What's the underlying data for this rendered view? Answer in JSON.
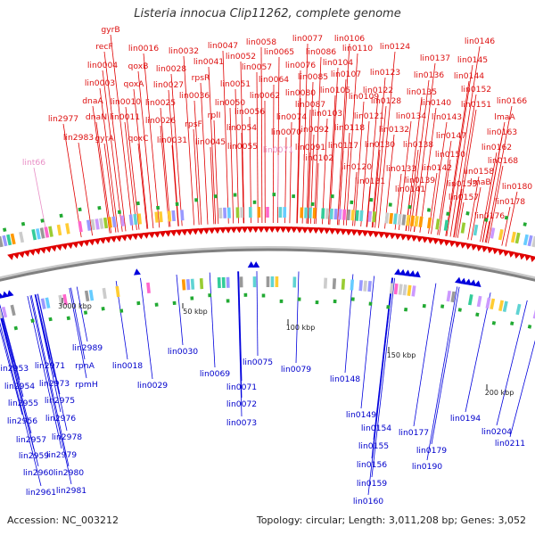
{
  "title": "Listeria innocua Clip11262, complete genome",
  "footer": {
    "accession": "Accession: NC_003212",
    "summary": "Topology: circular; Length: 3,011,208 bp; Genes: 3,052"
  },
  "scale_labels": [
    "3000 kbp",
    "50 kbp",
    "100 kbp",
    "150 kbp",
    "200 kbp"
  ],
  "colors": {
    "forward": "#e00000",
    "reverse": "#0000dd",
    "backbone": "#808080",
    "pseudo": "#e98fc6"
  },
  "labels_forward": [
    "gyrB",
    "recF",
    "lin0016",
    "lin0004",
    "qoxB",
    "lin0003",
    "qoxA",
    "dnaA",
    "lin0010",
    "dnaN",
    "lin0011",
    "lin2977",
    "lin2983",
    "gyrA",
    "qoxC",
    "lin0032",
    "lin0047",
    "lin0028",
    "lin0041",
    "rpsR",
    "lin0027",
    "lin0025",
    "lin0036",
    "rpsF",
    "lin0026",
    "rplI",
    "lin0031",
    "lin0045",
    "lin0050",
    "lin0051",
    "lin0052",
    "lin0058",
    "lin0057",
    "lin0065",
    "lin0062",
    "lin0064",
    "lin0056",
    "lin0054",
    "lin0055",
    "lin0077",
    "lin0076",
    "lin0086",
    "lin0085",
    "lin0080",
    "lin0074",
    "lin0070",
    "lin0087",
    "lin0092",
    "lin0091",
    "lin0102",
    "lin0106",
    "lin0110",
    "lin0104",
    "lin0107",
    "lin0105",
    "lin0109",
    "lin0103",
    "lin0118",
    "lin0117",
    "lin0120",
    "lin0124",
    "lin0123",
    "lin0122",
    "lin0128",
    "lin0121",
    "lin0132",
    "lin0130",
    "lin0131",
    "lin0137",
    "lin0136",
    "lin0135",
    "lin0140",
    "lin0134",
    "lin0138",
    "lin0133",
    "lin0139",
    "lin0141",
    "lin0142",
    "lin0146",
    "lin0145",
    "lin0144",
    "lin0152",
    "lin0143",
    "lin0151",
    "lin0147",
    "lin0150",
    "lin0153",
    "lin0166",
    "lmaA",
    "lin0163",
    "lin0162",
    "lin0168",
    "lin0158",
    "lmaB",
    "lin0180",
    "lin0157",
    "lin0178",
    "lin0176"
  ],
  "labels_pseudo": [
    "lint66",
    "lin0071"
  ],
  "labels_reverse": [
    "lin2989",
    "lin2971",
    "rpnA",
    "lin2953",
    "lin2973",
    "rpmH",
    "lin2954",
    "lin2975",
    "lin2955",
    "lin2976",
    "lin2956",
    "lin2978",
    "lin2957",
    "lin2979",
    "lin2959",
    "lin2980",
    "lin2960",
    "lin2981",
    "lin2961",
    "lin0018",
    "lin0029",
    "lin0030",
    "lin0069",
    "lin0075",
    "lin0079",
    "lin0071",
    "lin0072",
    "lin0073",
    "lin0148",
    "lin0149",
    "lin0154",
    "lin0155",
    "lin0156",
    "lin0159",
    "lin0160",
    "lin0177",
    "lin0179",
    "lin0190",
    "lin0194",
    "lin0204",
    "lin0211"
  ]
}
